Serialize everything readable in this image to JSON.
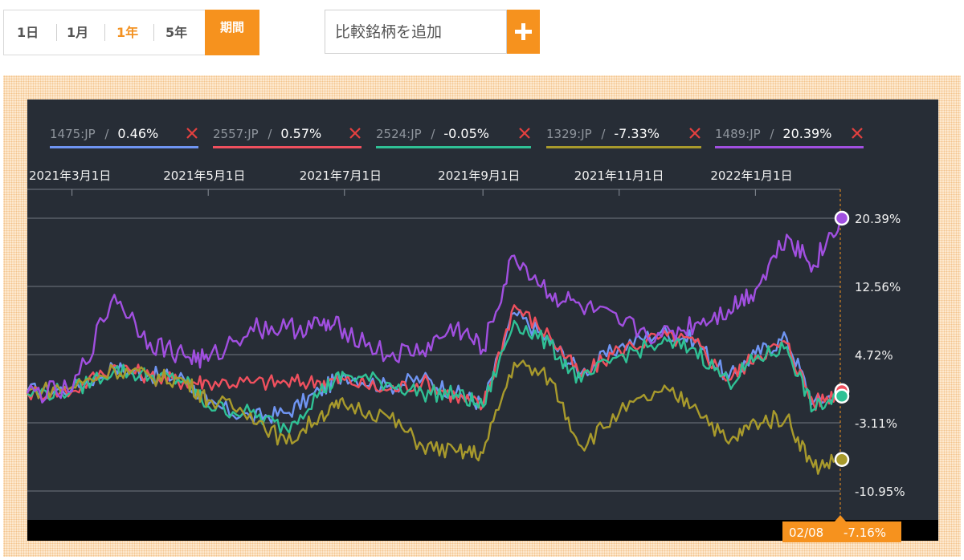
{
  "toolbar": {
    "range_tabs": [
      {
        "label": "1日",
        "active": false
      },
      {
        "label": "1月",
        "active": false
      },
      {
        "label": "1年",
        "active": true
      },
      {
        "label": "5年",
        "active": false
      }
    ],
    "period_label": "期間",
    "compare_placeholder": "比較銘柄を追加",
    "add_label": "+"
  },
  "colors": {
    "accent": "#f6921e",
    "panel_bg": "#272d36",
    "grid": "#8a9099",
    "remove_x": "#e5403f"
  },
  "chart_data": {
    "type": "line",
    "x_tick_labels": [
      "2021年3月1日",
      "2021年5月1日",
      "2021年7月1日",
      "2021年9月1日",
      "2021年11月1日",
      "2022年1月1日"
    ],
    "y_tick_labels": [
      "20.39%",
      "12.56%",
      "4.72%",
      "-3.11%",
      "-10.95%"
    ],
    "y_ticks": [
      20.39,
      12.56,
      4.72,
      -3.11,
      -10.95
    ],
    "ylim": [
      -14.5,
      21.5
    ],
    "grid": true,
    "legend_position": "top",
    "x": [
      "2021-02-09",
      "2021-03-01",
      "2021-03-20",
      "2021-04-05",
      "2021-04-20",
      "2021-05-01",
      "2021-05-20",
      "2021-06-05",
      "2021-06-20",
      "2021-07-01",
      "2021-07-20",
      "2021-08-05",
      "2021-08-20",
      "2021-09-01",
      "2021-09-15",
      "2021-10-01",
      "2021-10-15",
      "2021-11-01",
      "2021-11-20",
      "2021-12-05",
      "2021-12-20",
      "2022-01-01",
      "2022-01-15",
      "2022-01-27",
      "2022-02-08"
    ],
    "series": [
      {
        "name": "1475:JP",
        "value_label": "0.46%",
        "color": "#6f95f3",
        "values": [
          0.5,
          0.8,
          3.2,
          2.4,
          2.0,
          -1.0,
          -2.5,
          -2.0,
          0.5,
          2.5,
          1.0,
          2.0,
          0.3,
          -1.0,
          9.5,
          6.2,
          2.6,
          5.6,
          7.4,
          6.4,
          2.0,
          4.8,
          6.6,
          -0.8,
          0.46
        ]
      },
      {
        "name": "2557:JP",
        "value_label": "0.57%",
        "color": "#f0505e",
        "values": [
          0.3,
          0.5,
          3.5,
          2.2,
          1.6,
          1.6,
          1.5,
          1.5,
          1.6,
          1.8,
          0.6,
          1.6,
          -0.1,
          -1.2,
          10.4,
          6.8,
          2.2,
          5.3,
          6.8,
          6.1,
          1.8,
          4.6,
          6.0,
          -0.9,
          0.57
        ]
      },
      {
        "name": "2524:JP",
        "value_label": "-0.05%",
        "color": "#2fc195",
        "values": [
          0.2,
          0.6,
          3.0,
          2.2,
          1.8,
          -1.2,
          -2.0,
          -3.8,
          0.5,
          2.4,
          1.5,
          0.3,
          0.2,
          -1.3,
          8.6,
          5.8,
          1.6,
          4.6,
          6.0,
          5.4,
          1.5,
          4.2,
          5.6,
          -1.6,
          -0.05
        ]
      },
      {
        "name": "1329:JP",
        "value_label": "-7.33%",
        "color": "#a89a2c",
        "values": [
          0.5,
          1.0,
          3.0,
          2.2,
          1.8,
          -0.5,
          -2.0,
          -5.5,
          -2.2,
          -1.0,
          -2.3,
          -5.8,
          -6.5,
          -6.6,
          3.8,
          2.0,
          -5.8,
          -2.0,
          0.5,
          -1.0,
          -5.5,
          -3.0,
          -2.5,
          -8.2,
          -7.33
        ]
      },
      {
        "name": "1489:JP",
        "value_label": "20.39%",
        "color": "#a14fe0",
        "values": [
          0.3,
          0.5,
          11.6,
          6.1,
          4.7,
          4.0,
          7.9,
          7.7,
          8.1,
          7.7,
          4.6,
          5.2,
          7.9,
          5.3,
          16.1,
          11.7,
          10.2,
          8.3,
          6.8,
          8.3,
          9.9,
          12.2,
          18.5,
          15.0,
          20.39
        ]
      }
    ],
    "cursor": {
      "date_label": "02/08",
      "value_label": "-7.16%"
    }
  }
}
